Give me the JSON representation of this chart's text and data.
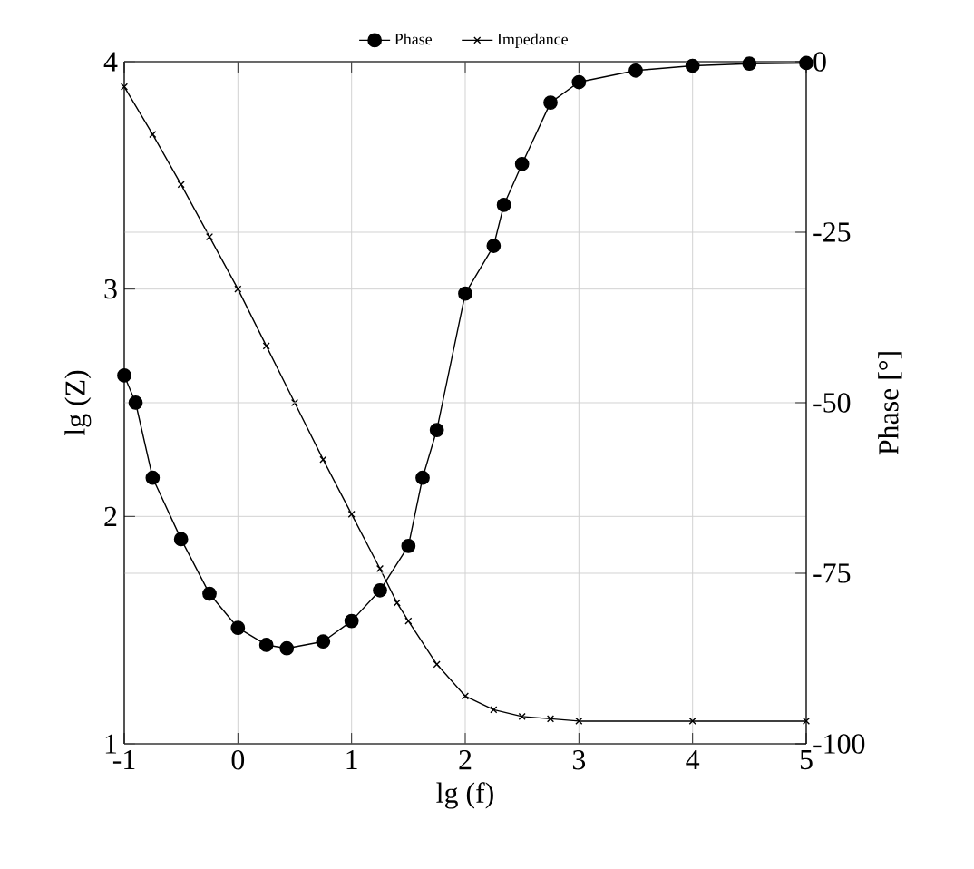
{
  "chart_data": {
    "type": "line",
    "xlabel": "lg (f)",
    "ylabel": "lg (Z)",
    "y2label": "Phase [°]",
    "xlim": [
      -1,
      5
    ],
    "xticks": [
      -1,
      0,
      1,
      2,
      3,
      4,
      5
    ],
    "ylim": [
      1,
      4
    ],
    "yticks": [
      1,
      2,
      3,
      4
    ],
    "y2lim": [
      -100,
      0
    ],
    "y2ticks": [
      -100,
      -75,
      -50,
      -25,
      0
    ],
    "grid": true,
    "legend": "top",
    "line_style": "solid",
    "series": [
      {
        "name": "Phase",
        "color": "#000000",
        "axis": "y2",
        "marker": "circle",
        "x": [
          -1,
          -0.9,
          -0.75,
          -0.5,
          -0.25,
          0,
          0.25,
          0.43,
          0.75,
          1,
          1.25,
          1.5,
          1.625,
          1.75,
          2,
          2.25,
          2.34,
          2.5,
          2.75,
          3,
          3.5,
          4,
          4.5,
          5
        ],
        "values": [
          -46,
          -50,
          -61,
          -70,
          -78,
          -83,
          -85.5,
          -86,
          -85,
          -82,
          -77.5,
          -71,
          -61,
          -54,
          -34,
          -27,
          -21,
          -15,
          -6,
          -3,
          -1.3,
          -0.6,
          -0.3,
          -0.2
        ]
      },
      {
        "name": "Impedance",
        "color": "#000000",
        "axis": "y",
        "marker": "cross",
        "x": [
          -1,
          -0.75,
          -0.5,
          -0.25,
          0,
          0.25,
          0.5,
          0.75,
          1,
          1.25,
          1.4,
          1.5,
          1.75,
          2,
          2.25,
          2.5,
          2.75,
          3,
          4,
          5
        ],
        "values": [
          3.89,
          3.68,
          3.46,
          3.23,
          3.0,
          2.75,
          2.5,
          2.25,
          2.01,
          1.77,
          1.62,
          1.54,
          1.35,
          1.21,
          1.15,
          1.12,
          1.11,
          1.1,
          1.1,
          1.1
        ]
      }
    ]
  }
}
